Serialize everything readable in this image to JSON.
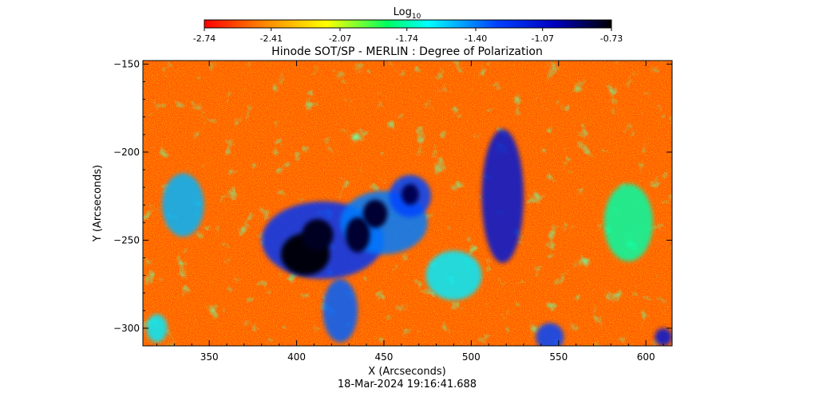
{
  "chart_data": {
    "type": "heatmap",
    "title": "Hinode SOT/SP - MERLIN : Degree of Polarization",
    "xlabel": "X (Arcseconds)",
    "ylabel": "Y (Arcseconds)",
    "xlim": [
      312,
      615
    ],
    "ylim": [
      -310,
      -148
    ],
    "x_ticks": [
      350,
      400,
      450,
      500,
      550,
      600
    ],
    "y_ticks": [
      -150,
      -200,
      -250,
      -300
    ],
    "colorbar": {
      "label_base": "Log",
      "label_sub": "10",
      "ticks": [
        -2.74,
        -2.41,
        -2.07,
        -1.74,
        -1.4,
        -1.07,
        -0.73
      ],
      "tick_labels": [
        "-2.74",
        "-2.41",
        "-2.07",
        "-1.74",
        "-1.40",
        "-1.07",
        "-0.73"
      ],
      "range": [
        -2.74,
        -0.73
      ],
      "colors": [
        "#ff0000",
        "#ff8000",
        "#ffff00",
        "#00ff60",
        "#00ffff",
        "#0040ff",
        "#0000c0",
        "#000000"
      ]
    },
    "regions": [
      {
        "kind": "core",
        "x": 405,
        "y": -258,
        "rx": 14,
        "ry": 12,
        "value": -0.75
      },
      {
        "kind": "core",
        "x": 412,
        "y": -247,
        "rx": 9,
        "ry": 9,
        "value": -0.78
      },
      {
        "kind": "core",
        "x": 435,
        "y": -247,
        "rx": 7,
        "ry": 10,
        "value": -0.8
      },
      {
        "kind": "core",
        "x": 445,
        "y": -235,
        "rx": 7,
        "ry": 8,
        "value": -0.8
      },
      {
        "kind": "core",
        "x": 465,
        "y": -224,
        "rx": 5,
        "ry": 6,
        "value": -0.85
      },
      {
        "kind": "halo",
        "x": 415,
        "y": -250,
        "rx": 35,
        "ry": 22,
        "value": -1.25
      },
      {
        "kind": "halo",
        "x": 450,
        "y": -240,
        "rx": 25,
        "ry": 18,
        "value": -1.4
      },
      {
        "kind": "halo",
        "x": 465,
        "y": -225,
        "rx": 12,
        "ry": 12,
        "value": -1.3
      },
      {
        "kind": "strip",
        "x": 518,
        "y": -225,
        "rx": 12,
        "ry": 38,
        "value": -1.1
      },
      {
        "kind": "network",
        "x": 335,
        "y": -230,
        "rx": 12,
        "ry": 18,
        "value": -1.5
      },
      {
        "kind": "network",
        "x": 425,
        "y": -290,
        "rx": 10,
        "ry": 18,
        "value": -1.35
      },
      {
        "kind": "network",
        "x": 490,
        "y": -270,
        "rx": 16,
        "ry": 14,
        "value": -1.6
      },
      {
        "kind": "network",
        "x": 545,
        "y": -305,
        "rx": 8,
        "ry": 8,
        "value": -1.3
      },
      {
        "kind": "network",
        "x": 590,
        "y": -240,
        "rx": 14,
        "ry": 22,
        "value": -1.75
      },
      {
        "kind": "network",
        "x": 320,
        "y": -300,
        "rx": 6,
        "ry": 8,
        "value": -1.6
      },
      {
        "kind": "network",
        "x": 610,
        "y": -305,
        "rx": 5,
        "ry": 5,
        "value": -1.1
      }
    ]
  },
  "timestamp": "18-Mar-2024 19:16:41.688"
}
